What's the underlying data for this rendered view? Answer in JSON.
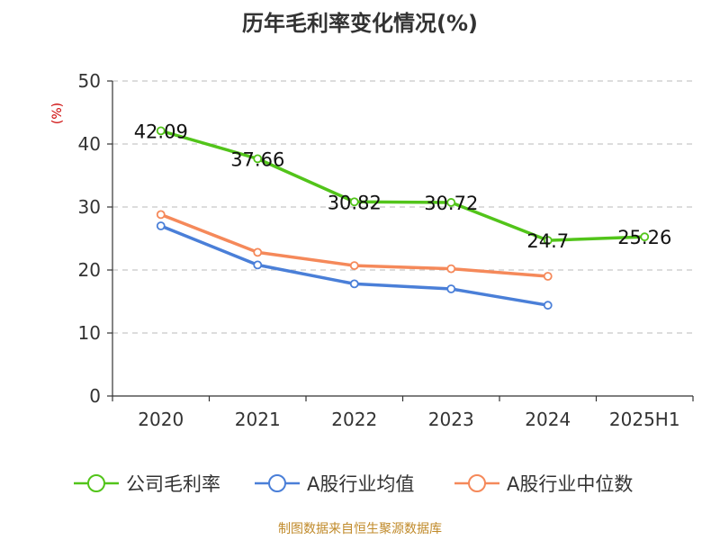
{
  "chart_data": {
    "type": "line",
    "title": "历年毛利率变化情况(%)",
    "ylabel": "(%)",
    "xlabel": "",
    "categories": [
      "2020",
      "2021",
      "2022",
      "2023",
      "2024",
      "2025H1"
    ],
    "yticks": [
      0,
      10,
      20,
      30,
      40,
      50
    ],
    "ylim": [
      0,
      50
    ],
    "grid": true,
    "legend_position": "bottom",
    "series": [
      {
        "name": "公司毛利率",
        "color": "#52c41a",
        "values": [
          42.09,
          37.66,
          30.82,
          30.72,
          24.7,
          25.26
        ],
        "labels": [
          "42.09",
          "37.66",
          "30.82",
          "30.72",
          "24.7",
          "25.26"
        ]
      },
      {
        "name": "A股行业均值",
        "color": "#4a7fd8",
        "values": [
          27.0,
          20.8,
          17.8,
          17.0,
          14.4,
          null
        ]
      },
      {
        "name": "A股行业中位数",
        "color": "#f5895a",
        "values": [
          28.8,
          22.8,
          20.7,
          20.2,
          19.0,
          null
        ]
      }
    ]
  },
  "source": "制图数据来自恒生聚源数据库"
}
